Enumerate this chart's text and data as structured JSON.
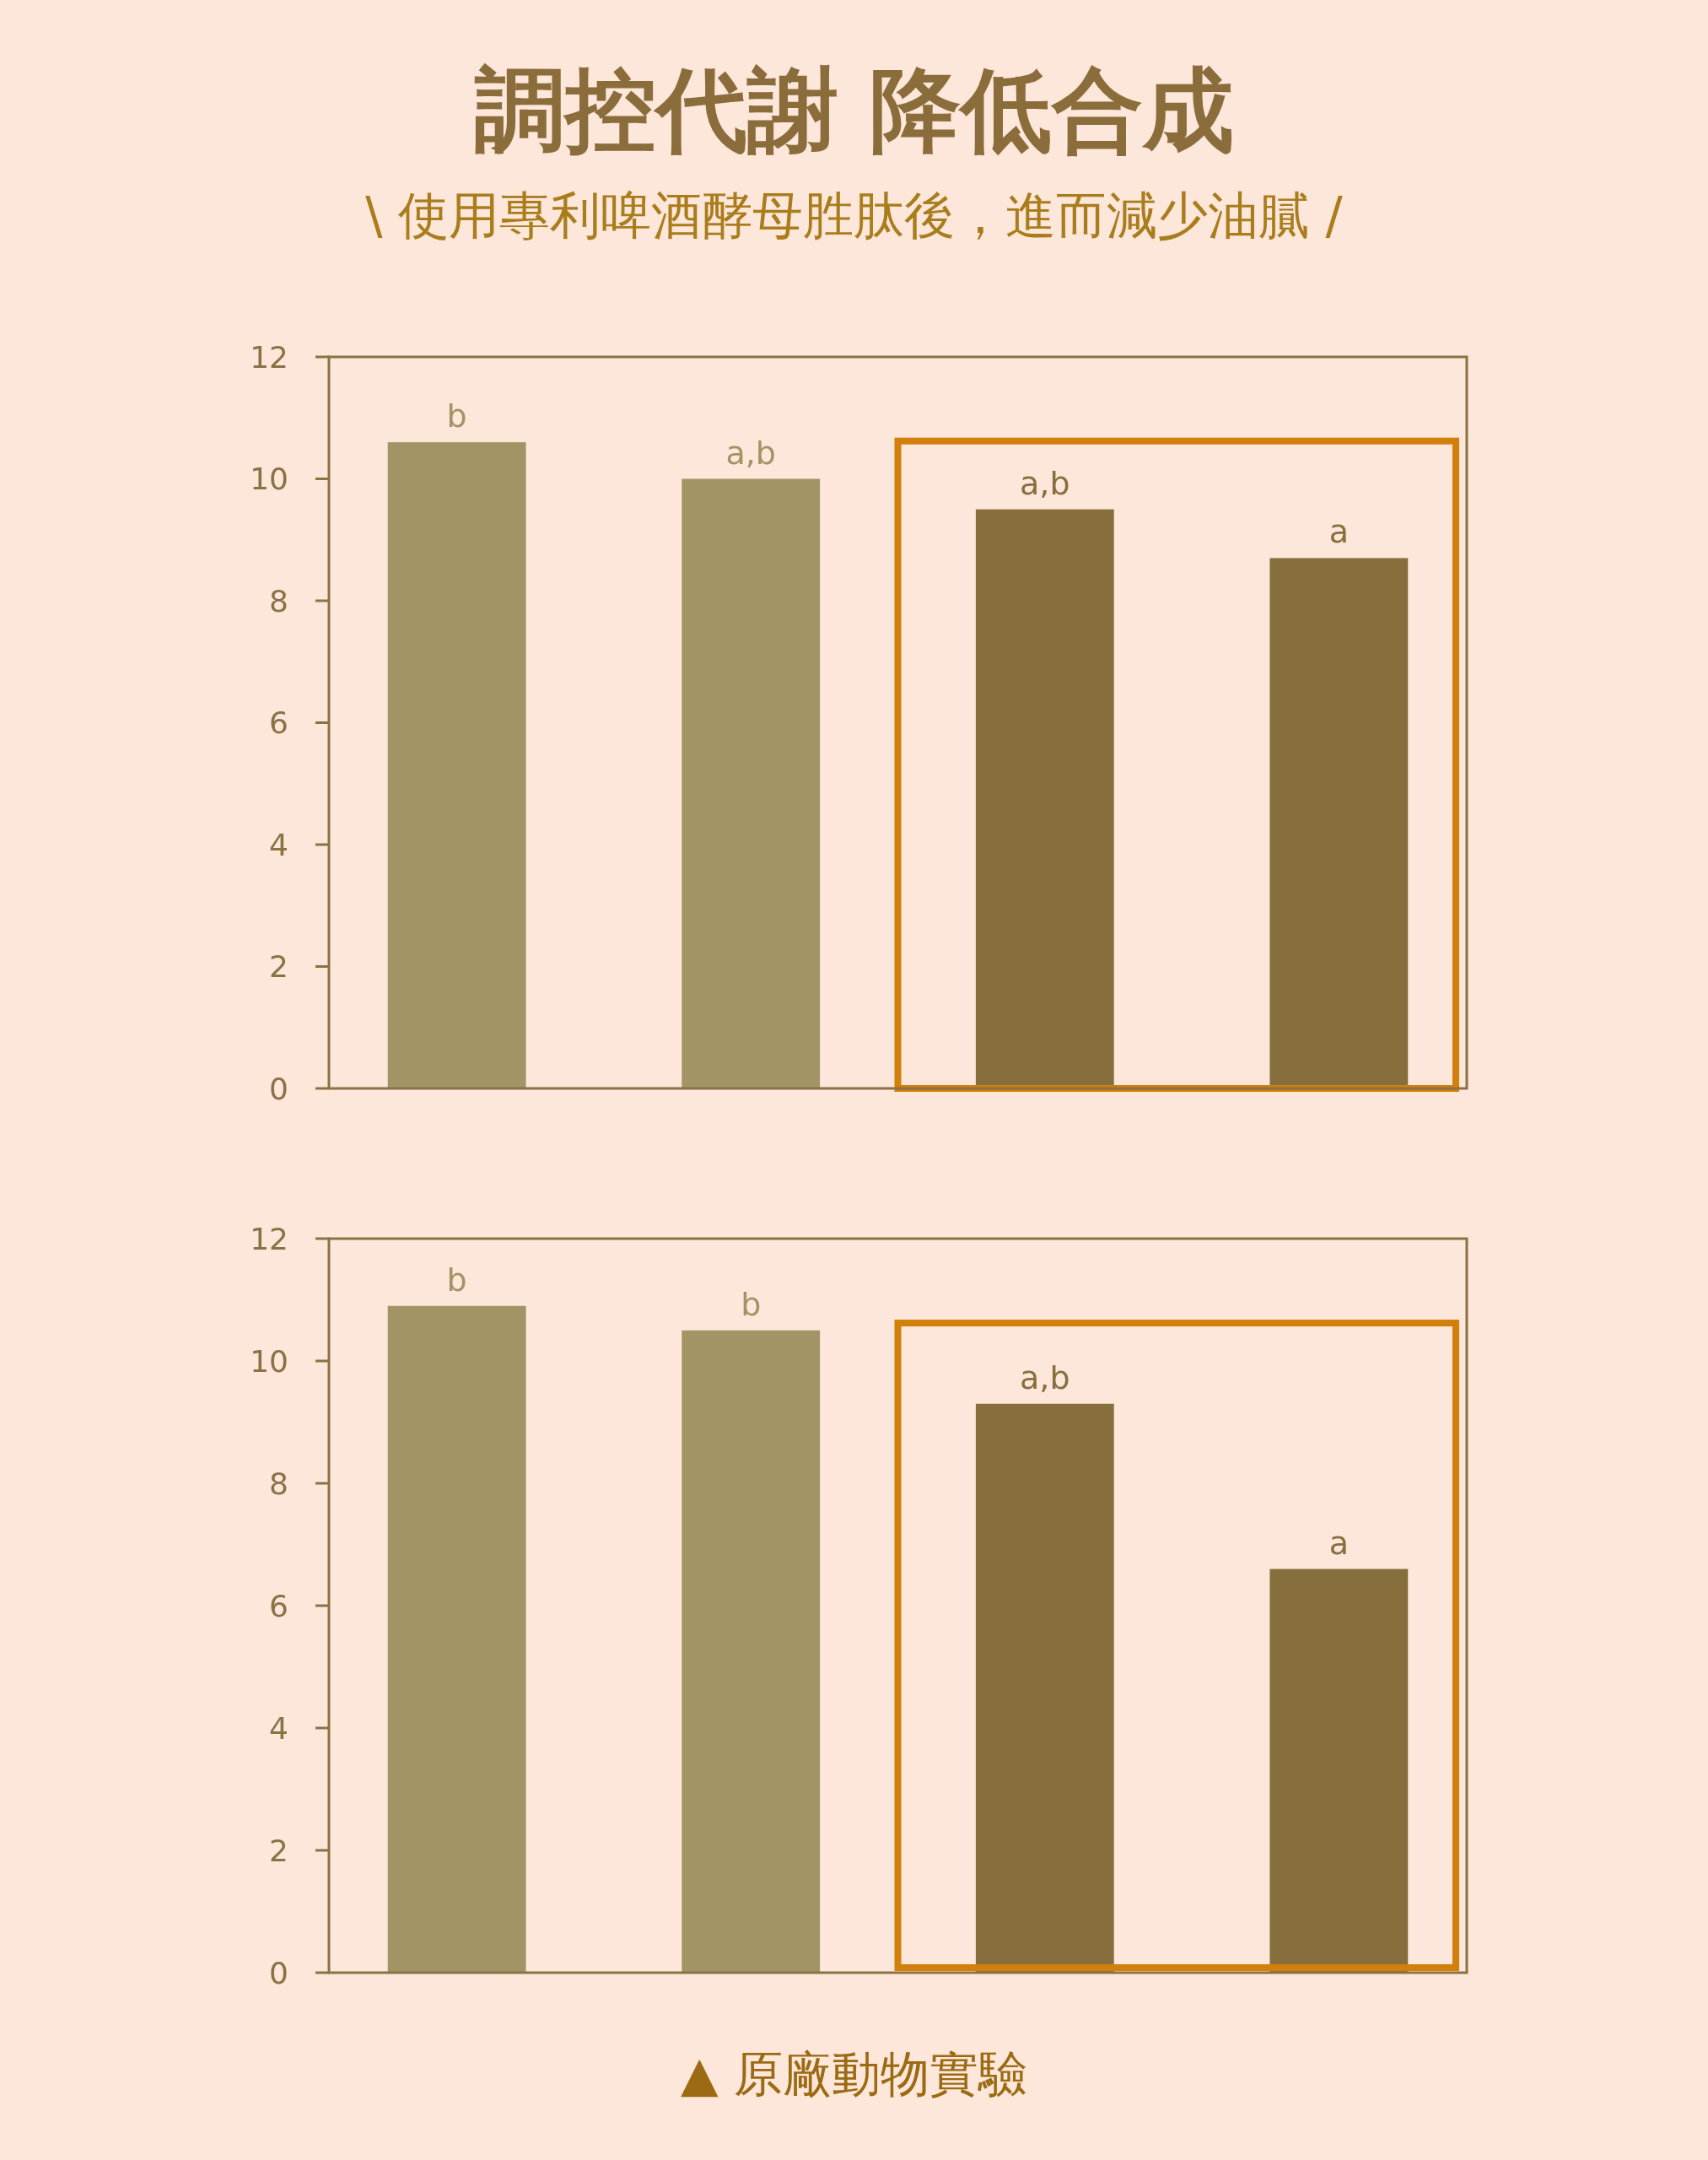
{
  "chart_data": [
    {
      "type": "bar",
      "title": "調控代謝 降低合成",
      "subtitle": "\\ 使用專利啤酒酵母胜肽後，進而減少油膩 /",
      "categories": [
        null,
        null,
        null,
        null
      ],
      "values": [
        10.6,
        10.0,
        9.5,
        8.7
      ],
      "colors": [
        "#a39466",
        "#a39466",
        "#876f3d",
        "#876f3d"
      ],
      "value_labels": [
        "b",
        "a,b",
        "a,b",
        "a"
      ],
      "ylim": [
        0,
        12
      ],
      "yticks": [
        0,
        2,
        4,
        6,
        8,
        10,
        12
      ],
      "tick_labels": "y"
    },
    {
      "type": "bar",
      "categories": [
        null,
        null,
        null,
        null
      ],
      "values": [
        10.9,
        10.5,
        9.3,
        6.6
      ],
      "colors": [
        "#a39466",
        "#a39466",
        "#876f3d",
        "#876f3d"
      ],
      "value_labels": [
        "b",
        "b",
        "a,b",
        "a"
      ],
      "ylim": [
        0,
        12
      ],
      "yticks": [
        0,
        2,
        4,
        6,
        8,
        10,
        12
      ],
      "tick_labels": "y",
      "annotations": [
        "▲ 原廠動物實驗"
      ]
    }
  ]
}
